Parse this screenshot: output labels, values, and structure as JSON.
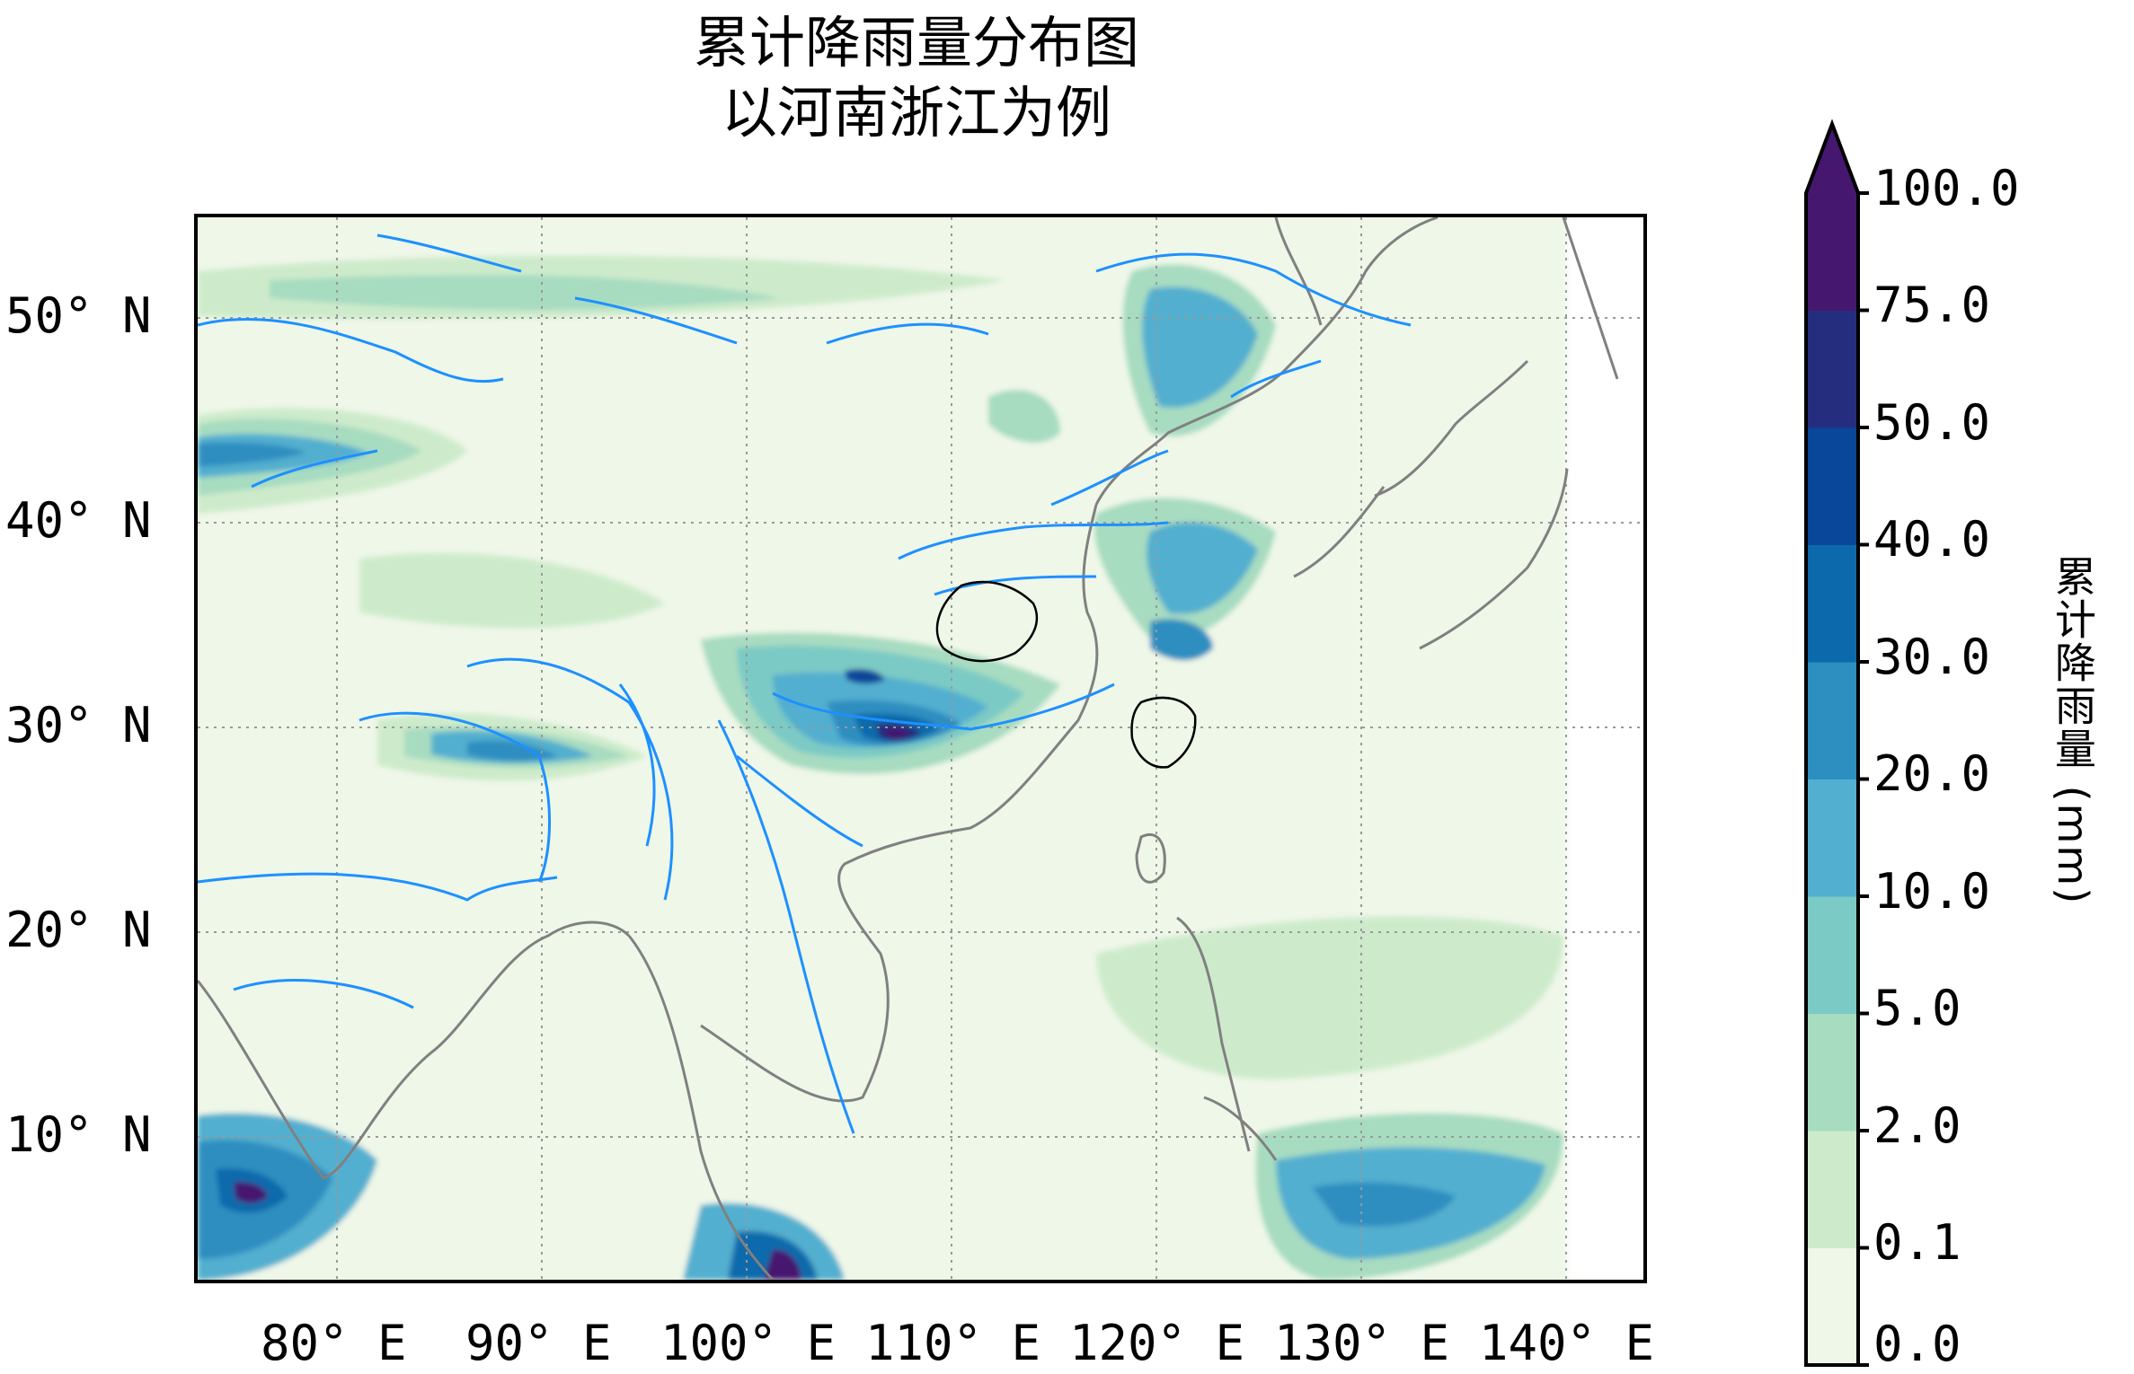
{
  "title": {
    "line1": "累计降雨量分布图",
    "line2": "以河南浙江为例"
  },
  "map": {
    "lat_ticks": [
      "50° N",
      "40° N",
      "30° N",
      "20° N",
      "10° N"
    ],
    "lon_ticks": [
      "80° E",
      "90° E",
      "100° E",
      "110° E",
      "120° E",
      "130° E",
      "140° E"
    ],
    "extent": {
      "lon": [
        72,
        143
      ],
      "lat": [
        3,
        55
      ]
    },
    "highlighted_provinces": [
      "河南",
      "浙江"
    ],
    "grid": "dotted",
    "river_color": "#1e90ff",
    "coastline_color": "#808080",
    "province_border_color": "#000000"
  },
  "colorbar": {
    "title": "累计降雨量 (mm)",
    "tick_labels": [
      "100.0",
      "75.0",
      "50.0",
      "40.0",
      "30.0",
      "20.0",
      "10.0",
      "5.0",
      "2.0",
      "0.1",
      "0.0"
    ],
    "levels": [
      0.0,
      0.1,
      2.0,
      5.0,
      10.0,
      20.0,
      30.0,
      40.0,
      50.0,
      75.0,
      100.0
    ],
    "colors": [
      "#eef7e8",
      "#cdebcb",
      "#a7dcc1",
      "#7ccac5",
      "#52afcf",
      "#2d8ec0",
      "#0c6aac",
      "#08479a",
      "#252e7e",
      "#46176f"
    ],
    "extend": "max",
    "colormap": "GnBu-like"
  }
}
